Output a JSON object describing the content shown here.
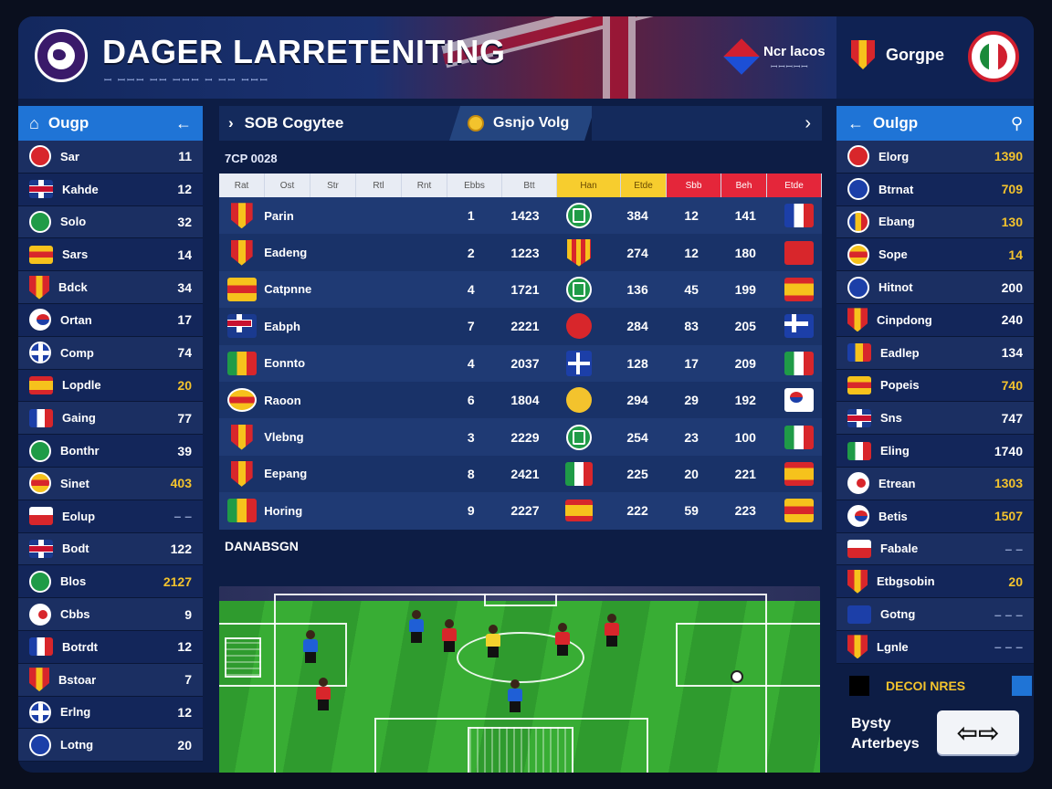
{
  "header": {
    "title": "DAGER LARRETENITING",
    "subtitle": "ꟷ ꟷꟷꟷ ꟷꟷ ꟷꟷꟷ ꟷ ꟷꟷ ꟷꟷꟷ",
    "badge_title": "Ncr lacos",
    "badge_sub": "ꟷꟷꟷꟷꟷ",
    "team_name": "Gorgpe"
  },
  "left_panel": {
    "title": "Ougp",
    "rows": [
      {
        "flag": "f-red circle",
        "name": "Sar",
        "value": "11",
        "tone": ""
      },
      {
        "flag": "f-uk",
        "name": "Kahde",
        "value": "12",
        "tone": ""
      },
      {
        "flag": "f-green circle",
        "name": "Solo",
        "value": "32",
        "tone": ""
      },
      {
        "flag": "f-yel",
        "name": "Sars",
        "value": "14",
        "tone": ""
      },
      {
        "flag": "f-shield",
        "name": "Bdck",
        "value": "34",
        "tone": ""
      },
      {
        "flag": "f-kr circle",
        "name": "Ortan",
        "value": "17",
        "tone": ""
      },
      {
        "flag": "f-nord circle",
        "name": "Comp",
        "value": "74",
        "tone": ""
      },
      {
        "flag": "f-es",
        "name": "Lopdle",
        "value": "20",
        "tone": "gold"
      },
      {
        "flag": "f-fr",
        "name": "Gaing",
        "value": "77",
        "tone": ""
      },
      {
        "flag": "f-green circle",
        "name": "Bonthr",
        "value": "39",
        "tone": ""
      },
      {
        "flag": "f-yel circle",
        "name": "Sinet",
        "value": "403",
        "tone": "gold"
      },
      {
        "flag": "f-lv",
        "name": "Eolup",
        "value": "– –",
        "tone": "dim"
      },
      {
        "flag": "f-uk",
        "name": "Bodt",
        "value": "122",
        "tone": ""
      },
      {
        "flag": "f-green circle",
        "name": "Blos",
        "value": "2127",
        "tone": "gold"
      },
      {
        "flag": "f-jp circle",
        "name": "Cbbs",
        "value": "9",
        "tone": ""
      },
      {
        "flag": "f-fr",
        "name": "Botrdt",
        "value": "12",
        "tone": ""
      },
      {
        "flag": "f-shield",
        "name": "Bstoar",
        "value": "7",
        "tone": ""
      },
      {
        "flag": "f-nord circle",
        "name": "Erlng",
        "value": "12",
        "tone": ""
      },
      {
        "flag": "f-blue circle",
        "name": "Lotng",
        "value": "20",
        "tone": ""
      }
    ]
  },
  "main": {
    "tab1_label": "SOB Cogytee",
    "tab2_label": "Gsnjo Volg",
    "section_label": "7CP 0028",
    "table": {
      "headers": [
        "Rat",
        "Ost",
        "Str",
        "Rtl",
        "Rnt",
        "Ebbs",
        "Btt",
        "Han",
        "Etde",
        "Sbb",
        "Beh",
        "Etde"
      ],
      "rows": [
        {
          "icon": "f-shield",
          "name": "Parin",
          "rank": "1",
          "pts": "1423",
          "sym": "green",
          "v1": "384",
          "v2": "12",
          "v3": "141",
          "flag": "f-fr"
        },
        {
          "icon": "f-shield",
          "name": "Eadeng",
          "rank": "2",
          "pts": "1223",
          "sym": "stripe",
          "v1": "274",
          "v2": "12",
          "v3": "180",
          "flag": "f-red"
        },
        {
          "icon": "f-yel",
          "name": "Catpnne",
          "rank": "4",
          "pts": "1721",
          "sym": "green",
          "v1": "136",
          "v2": "45",
          "v3": "199",
          "flag": "f-es"
        },
        {
          "icon": "f-uk",
          "name": "Eabph",
          "rank": "7",
          "pts": "2221",
          "sym": "red",
          "v1": "284",
          "v2": "83",
          "v3": "205",
          "flag": "f-nord"
        },
        {
          "icon": "f-ml",
          "name": "Eonnto",
          "rank": "4",
          "pts": "2037",
          "sym": "cross",
          "v1": "128",
          "v2": "17",
          "v3": "209",
          "flag": "f-it"
        },
        {
          "icon": "f-yel circle",
          "name": "Raoon",
          "rank": "6",
          "pts": "1804",
          "sym": "yel",
          "v1": "294",
          "v2": "29",
          "v3": "192",
          "flag": "f-kr"
        },
        {
          "icon": "f-shield",
          "name": "Vlebng",
          "rank": "3",
          "pts": "2229",
          "sym": "green",
          "v1": "254",
          "v2": "23",
          "v3": "100",
          "flag": "f-it"
        },
        {
          "icon": "f-shield",
          "name": "Eepang",
          "rank": "8",
          "pts": "2421",
          "sym": "flagit",
          "v1": "225",
          "v2": "20",
          "v3": "221",
          "flag": "f-es"
        },
        {
          "icon": "f-ml",
          "name": "Horing",
          "rank": "9",
          "pts": "2227",
          "sym": "flages",
          "v1": "222",
          "v2": "59",
          "v3": "223",
          "flag": "f-yel"
        }
      ]
    },
    "pitch_label": "DANABSGN"
  },
  "right_panel": {
    "title": "Oulgp",
    "rows": [
      {
        "flag": "f-red circle",
        "name": "Elorg",
        "value": "1390",
        "tone": "gold"
      },
      {
        "flag": "f-blue circle",
        "name": "Btrnat",
        "value": "709",
        "tone": "gold"
      },
      {
        "flag": "f-ro circle",
        "name": "Ebang",
        "value": "130",
        "tone": "gold"
      },
      {
        "flag": "f-yel circle",
        "name": "Sope",
        "value": "14",
        "tone": "gold"
      },
      {
        "flag": "f-blue circle",
        "name": "Hitnot",
        "value": "200",
        "tone": ""
      },
      {
        "flag": "f-shield",
        "name": "Cinpdong",
        "value": "240",
        "tone": ""
      },
      {
        "flag": "f-ro",
        "name": "Eadlep",
        "value": "134",
        "tone": ""
      },
      {
        "flag": "f-yel",
        "name": "Popeis",
        "value": "740",
        "tone": "gold"
      },
      {
        "flag": "f-uk",
        "name": "Sns",
        "value": "747",
        "tone": ""
      },
      {
        "flag": "f-it",
        "name": "Eling",
        "value": "1740",
        "tone": ""
      },
      {
        "flag": "f-jp circle",
        "name": "Etrean",
        "value": "1303",
        "tone": "gold"
      },
      {
        "flag": "f-kr circle",
        "name": "Betis",
        "value": "1507",
        "tone": "gold"
      },
      {
        "flag": "f-lv",
        "name": "Fabale",
        "value": "– –",
        "tone": "dim"
      },
      {
        "flag": "f-shield",
        "name": "Etbgsobin",
        "value": "20",
        "tone": "gold"
      },
      {
        "flag": "f-blue",
        "name": "Gotng",
        "value": "– – –",
        "tone": "dim"
      },
      {
        "flag": "f-shield",
        "name": "Lgnle",
        "value": "– – –",
        "tone": "dim"
      }
    ],
    "legend_text": "DECOI NRES",
    "bottom_text": "Bysty Arterbeys",
    "arrow_label": "⇦⇨"
  }
}
